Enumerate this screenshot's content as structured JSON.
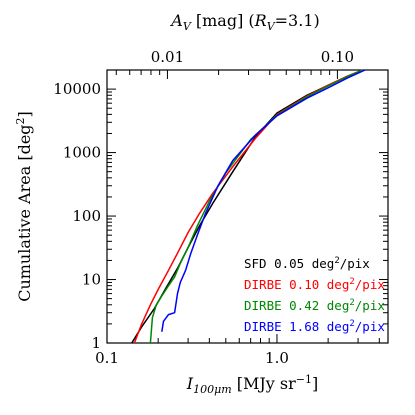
{
  "chart_data": {
    "type": "line",
    "x_scale": "log",
    "y_scale": "log",
    "xlim": [
      0.1,
      4.5
    ],
    "ylim": [
      1,
      20000
    ],
    "xticks": [
      0.1,
      1.0
    ],
    "xtick_labels": [
      "0.1",
      "1.0"
    ],
    "yticks": [
      1,
      10,
      100,
      1000,
      10000
    ],
    "ytick_labels": [
      "1",
      "10",
      "100",
      "1000",
      "10000"
    ],
    "xlabel_base": "I",
    "xlabel_sub": "100μm",
    "xlabel_rest": " [MJy sr",
    "xlabel_sup": "−1",
    "xlabel_close": "]",
    "ylabel_text": "Cumulative Area [deg",
    "ylabel_sup": "2",
    "ylabel_close": "]",
    "top_axis": {
      "label_parts": [
        "A",
        "V",
        " [mag]  (",
        "R",
        "V",
        "=3.1)"
      ],
      "ticks": [
        0.01,
        0.1
      ],
      "tick_labels": [
        "0.01",
        "0.10"
      ],
      "conversion_factor_Av_per_I": 0.0441
    },
    "legend_placement": "bottom-right",
    "series": [
      {
        "name": "SFD",
        "resolution": "0.05 deg",
        "unit_sup": "2",
        "unit_tail": "/pix",
        "color": "#000000",
        "x": [
          0.14,
          0.16,
          0.19,
          0.22,
          0.26,
          0.3,
          0.35,
          0.42,
          0.55,
          0.75,
          1.0,
          1.5,
          2.0,
          2.6,
          3.2
        ],
        "y": [
          1,
          1.8,
          3.5,
          7,
          15,
          32,
          70,
          160,
          500,
          1800,
          4200,
          8000,
          11500,
          16000,
          20000
        ]
      },
      {
        "name": "DIRBE",
        "resolution": "0.10 deg",
        "unit_sup": "2",
        "unit_tail": "/pix",
        "color": "#ff0000",
        "x": [
          0.145,
          0.16,
          0.18,
          0.2,
          0.23,
          0.26,
          0.3,
          0.35,
          0.42,
          0.55,
          0.75,
          1.0,
          1.5,
          2.0,
          2.6,
          3.2
        ],
        "y": [
          1,
          2,
          4,
          7,
          14,
          26,
          55,
          110,
          230,
          600,
          1700,
          4000,
          7800,
          11500,
          16000,
          20000
        ]
      },
      {
        "name": "DIRBE",
        "resolution": "0.42 deg",
        "unit_sup": "2",
        "unit_tail": "/pix",
        "color": "#008800",
        "x": [
          0.18,
          0.185,
          0.195,
          0.21,
          0.23,
          0.25,
          0.27,
          0.3,
          0.34,
          0.4,
          0.5,
          0.7,
          1.0,
          1.5,
          2.0,
          2.6,
          3.2
        ],
        "y": [
          1,
          2.5,
          4,
          5.5,
          8,
          11,
          18,
          32,
          70,
          170,
          480,
          1600,
          3900,
          7600,
          11200,
          15800,
          20000
        ]
      },
      {
        "name": "DIRBE",
        "resolution": "1.68 deg",
        "unit_sup": "2",
        "unit_tail": "/pix",
        "color": "#0000ff",
        "x": [
          0.21,
          0.215,
          0.23,
          0.25,
          0.26,
          0.27,
          0.29,
          0.31,
          0.34,
          0.38,
          0.45,
          0.55,
          0.75,
          1.0,
          1.5,
          2.0,
          2.6,
          3.3
        ],
        "y": [
          1.5,
          2.2,
          2.8,
          3,
          6,
          9,
          14,
          25,
          50,
          110,
          300,
          750,
          1900,
          3800,
          7200,
          10500,
          15000,
          20000
        ]
      }
    ]
  }
}
